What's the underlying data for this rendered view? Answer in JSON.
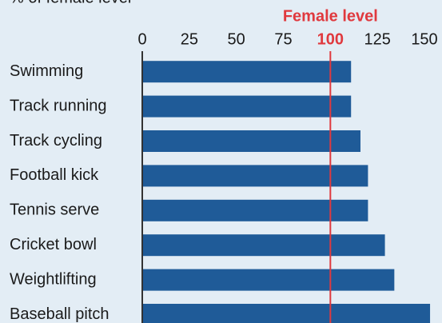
{
  "chart_data": {
    "type": "bar",
    "orientation": "horizontal",
    "axis_label": "% of female level",
    "categories": [
      "Swimming",
      "Track running",
      "Track cycling",
      "Football kick",
      "Tennis serve",
      "Cricket bowl",
      "Weightlifting",
      "Baseball pitch"
    ],
    "values": [
      111,
      111,
      116,
      120,
      120,
      129,
      134,
      153
    ],
    "color": "#1f5b98",
    "xlim": [
      0,
      150
    ],
    "xticks": [
      0,
      25,
      50,
      75,
      100,
      125,
      150
    ],
    "reference_line": {
      "value": 100,
      "label": "Female level",
      "color": "#e0393e"
    }
  }
}
